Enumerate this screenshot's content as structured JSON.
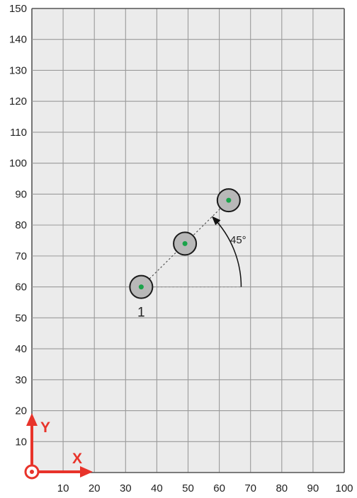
{
  "x_axis": {
    "min": 0,
    "max": 100,
    "step": 10,
    "tick_labels": [
      "10",
      "20",
      "30",
      "40",
      "50",
      "60",
      "70",
      "80",
      "90",
      "100"
    ],
    "letter": "X"
  },
  "y_axis": {
    "min": 0,
    "max": 150,
    "step": 10,
    "tick_labels": [
      "10",
      "20",
      "30",
      "40",
      "50",
      "60",
      "70",
      "80",
      "90",
      "100",
      "110",
      "120",
      "130",
      "140",
      "150"
    ],
    "letter": "Y"
  },
  "holes": [
    {
      "x": 35,
      "y": 60
    },
    {
      "x": 49,
      "y": 74
    },
    {
      "x": 63,
      "y": 88
    }
  ],
  "first_hole_label": "1",
  "angle_label": "45°",
  "reference_line_end_x": 67,
  "colors": {
    "grid_background": "#ebebeb",
    "grid_lines": "#9a9a9a",
    "hole_fill": "#b8b8b8",
    "hole_center": "#1aa34a",
    "axis_red": "#e8332a",
    "text": "#222222"
  }
}
